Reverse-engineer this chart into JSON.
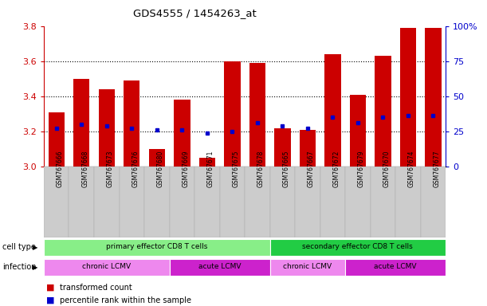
{
  "title": "GDS4555 / 1454263_at",
  "samples": [
    "GSM767666",
    "GSM767668",
    "GSM767673",
    "GSM767676",
    "GSM767680",
    "GSM767669",
    "GSM767671",
    "GSM767675",
    "GSM767678",
    "GSM767665",
    "GSM767667",
    "GSM767672",
    "GSM767679",
    "GSM767670",
    "GSM767674",
    "GSM767677"
  ],
  "bar_values": [
    3.31,
    3.5,
    3.44,
    3.49,
    3.1,
    3.38,
    3.05,
    3.6,
    3.59,
    3.22,
    3.21,
    3.64,
    3.41,
    3.63,
    3.79,
    3.79
  ],
  "blue_values": [
    3.22,
    3.24,
    3.23,
    3.22,
    3.21,
    3.21,
    3.19,
    3.2,
    3.25,
    3.23,
    3.22,
    3.28,
    3.25,
    3.28,
    3.29,
    3.29
  ],
  "ymin": 3.0,
  "ymax": 3.8,
  "yticks": [
    3.0,
    3.2,
    3.4,
    3.6,
    3.8
  ],
  "y2ticks": [
    0,
    25,
    50,
    75,
    100
  ],
  "bar_color": "#cc0000",
  "blue_color": "#0000cc",
  "cell_type_groups": [
    {
      "label": "primary effector CD8 T cells",
      "start": 0,
      "end": 8,
      "color": "#88ee88"
    },
    {
      "label": "secondary effector CD8 T cells",
      "start": 9,
      "end": 15,
      "color": "#22cc44"
    }
  ],
  "infection_groups": [
    {
      "label": "chronic LCMV",
      "start": 0,
      "end": 4,
      "color": "#ee88ee"
    },
    {
      "label": "acute LCMV",
      "start": 5,
      "end": 8,
      "color": "#cc22cc"
    },
    {
      "label": "chronic LCMV",
      "start": 9,
      "end": 11,
      "color": "#ee88ee"
    },
    {
      "label": "acute LCMV",
      "start": 12,
      "end": 15,
      "color": "#cc22cc"
    }
  ],
  "legend_items": [
    {
      "label": "transformed count",
      "color": "#cc0000"
    },
    {
      "label": "percentile rank within the sample",
      "color": "#0000cc"
    }
  ],
  "cell_type_label": "cell type",
  "infection_label": "infection",
  "sample_label_bg": "#cccccc",
  "bg_color": "#ffffff"
}
